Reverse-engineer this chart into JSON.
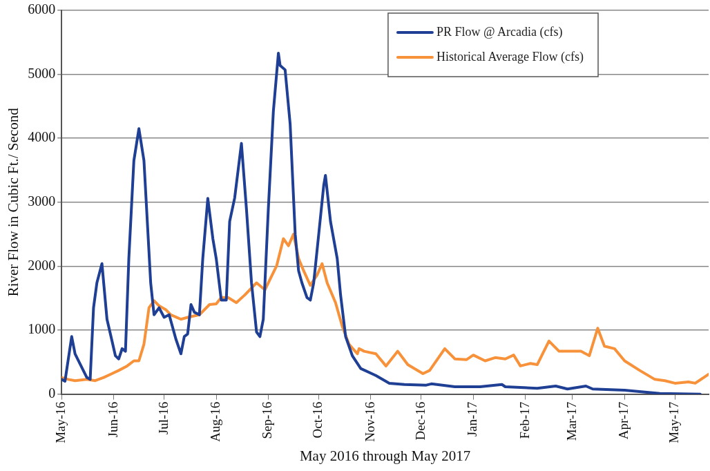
{
  "chart_data": {
    "type": "line",
    "xlabel": "May 2016 through May 2017",
    "ylabel": "River Flow in Cubic Ft./ Second",
    "xlim": [
      "2016-05-01",
      "2017-05-21"
    ],
    "xticks": [
      {
        "value": "2016-05-01",
        "label": "May-16"
      },
      {
        "value": "2016-06-01",
        "label": "Jun-16"
      },
      {
        "value": "2016-07-01",
        "label": "Jul-16"
      },
      {
        "value": "2016-08-01",
        "label": "Aug-16"
      },
      {
        "value": "2016-09-01",
        "label": "Sep-16"
      },
      {
        "value": "2016-10-01",
        "label": "Oct-16"
      },
      {
        "value": "2016-11-01",
        "label": "Nov-16"
      },
      {
        "value": "2016-12-01",
        "label": "Dec-16"
      },
      {
        "value": "2017-01-01",
        "label": "Jan-17"
      },
      {
        "value": "2017-02-01",
        "label": "Feb-17"
      },
      {
        "value": "2017-03-01",
        "label": "Mar-17"
      },
      {
        "value": "2017-04-01",
        "label": "Apr-17"
      },
      {
        "value": "2017-05-01",
        "label": "May-17"
      }
    ],
    "ylim": [
      0,
      6000
    ],
    "yticks": [
      0,
      1000,
      2000,
      3000,
      4000,
      5000,
      6000
    ],
    "grid": "y",
    "legend": "top right",
    "marker": "none",
    "line_style": "solid",
    "series": [
      {
        "name": "PR Flow @ Arcadia (cfs)",
        "color": "#1f3f94",
        "x": [
          "2016-05-01",
          "2016-05-03",
          "2016-05-07",
          "2016-05-09",
          "2016-05-16",
          "2016-05-18",
          "2016-05-20",
          "2016-05-22",
          "2016-05-25",
          "2016-05-28",
          "2016-05-31",
          "2016-06-02",
          "2016-06-04",
          "2016-06-06",
          "2016-06-08",
          "2016-06-10",
          "2016-06-13",
          "2016-06-16",
          "2016-06-19",
          "2016-06-23",
          "2016-06-25",
          "2016-06-28",
          "2016-07-01",
          "2016-07-04",
          "2016-07-08",
          "2016-07-11",
          "2016-07-13",
          "2016-07-15",
          "2016-07-17",
          "2016-07-19",
          "2016-07-22",
          "2016-07-24",
          "2016-07-27",
          "2016-07-30",
          "2016-08-01",
          "2016-08-04",
          "2016-08-07",
          "2016-08-09",
          "2016-08-12",
          "2016-08-16",
          "2016-08-19",
          "2016-08-22",
          "2016-08-25",
          "2016-08-27",
          "2016-08-29",
          "2016-09-01",
          "2016-09-04",
          "2016-09-07",
          "2016-09-08",
          "2016-09-11",
          "2016-09-14",
          "2016-09-17",
          "2016-09-19",
          "2016-09-21",
          "2016-09-24",
          "2016-09-26",
          "2016-09-28",
          "2016-10-01",
          "2016-10-04",
          "2016-10-05",
          "2016-10-08",
          "2016-10-12",
          "2016-10-14",
          "2016-10-17",
          "2016-10-21",
          "2016-10-26",
          "2016-11-04",
          "2016-11-12",
          "2016-11-21",
          "2016-12-04",
          "2016-12-07",
          "2016-12-21",
          "2017-01-05",
          "2017-01-18",
          "2017-01-20",
          "2017-02-08",
          "2017-02-19",
          "2017-02-26",
          "2017-03-09",
          "2017-03-13",
          "2017-04-01",
          "2017-04-22",
          "2017-05-16"
        ],
        "values": [
          230,
          200,
          900,
          630,
          260,
          230,
          1350,
          1740,
          2040,
          1170,
          830,
          600,
          550,
          710,
          670,
          2120,
          3650,
          4150,
          3650,
          1740,
          1240,
          1350,
          1200,
          1240,
          860,
          630,
          900,
          940,
          1400,
          1280,
          1240,
          2120,
          3060,
          2430,
          2120,
          1470,
          1470,
          2700,
          3070,
          3920,
          2890,
          1740,
          970,
          900,
          1170,
          2890,
          4420,
          5330,
          5140,
          5070,
          4220,
          2500,
          1930,
          1740,
          1510,
          1470,
          1740,
          2500,
          3270,
          3420,
          2700,
          2120,
          1550,
          900,
          600,
          400,
          290,
          170,
          150,
          140,
          160,
          115,
          115,
          150,
          115,
          90,
          126,
          80,
          126,
          80,
          60,
          10,
          0
        ]
      },
      {
        "name": "Historical Average Flow (cfs)",
        "color": "#f7923a",
        "x": [
          "2016-05-01",
          "2016-05-05",
          "2016-05-09",
          "2016-05-16",
          "2016-05-21",
          "2016-05-26",
          "2016-05-31",
          "2016-06-04",
          "2016-06-09",
          "2016-06-13",
          "2016-06-16",
          "2016-06-19",
          "2016-06-22",
          "2016-06-25",
          "2016-06-28",
          "2016-07-02",
          "2016-07-05",
          "2016-07-11",
          "2016-07-15",
          "2016-07-22",
          "2016-07-28",
          "2016-08-01",
          "2016-08-04",
          "2016-08-08",
          "2016-08-13",
          "2016-08-18",
          "2016-08-25",
          "2016-08-30",
          "2016-09-06",
          "2016-09-10",
          "2016-09-13",
          "2016-09-16",
          "2016-09-19",
          "2016-09-22",
          "2016-09-26",
          "2016-09-30",
          "2016-10-03",
          "2016-10-06",
          "2016-10-11",
          "2016-10-15",
          "2016-10-19",
          "2016-10-24",
          "2016-10-25",
          "2016-10-28",
          "2016-11-04",
          "2016-11-10",
          "2016-11-17",
          "2016-11-23",
          "2016-12-02",
          "2016-12-06",
          "2016-12-15",
          "2016-12-21",
          "2016-12-28",
          "2017-01-01",
          "2017-01-08",
          "2017-01-14",
          "2017-01-20",
          "2017-01-25",
          "2017-01-29",
          "2017-02-04",
          "2017-02-08",
          "2017-02-15",
          "2017-02-21",
          "2017-02-28",
          "2017-03-06",
          "2017-03-11",
          "2017-03-16",
          "2017-03-20",
          "2017-03-26",
          "2017-04-01",
          "2017-04-10",
          "2017-04-19",
          "2017-04-25",
          "2017-05-01",
          "2017-05-09",
          "2017-05-13",
          "2017-05-21"
        ],
        "values": [
          260,
          230,
          210,
          230,
          210,
          260,
          320,
          370,
          440,
          520,
          520,
          780,
          1350,
          1460,
          1380,
          1320,
          1240,
          1170,
          1200,
          1240,
          1400,
          1410,
          1510,
          1510,
          1430,
          1550,
          1740,
          1630,
          2010,
          2430,
          2320,
          2500,
          2120,
          1930,
          1700,
          1860,
          2040,
          1740,
          1430,
          1060,
          780,
          630,
          710,
          670,
          630,
          440,
          670,
          460,
          320,
          370,
          710,
          550,
          540,
          610,
          520,
          570,
          550,
          610,
          440,
          480,
          460,
          830,
          670,
          670,
          670,
          600,
          1030,
          750,
          710,
          520,
          370,
          230,
          210,
          170,
          190,
          170,
          310
        ]
      }
    ]
  }
}
